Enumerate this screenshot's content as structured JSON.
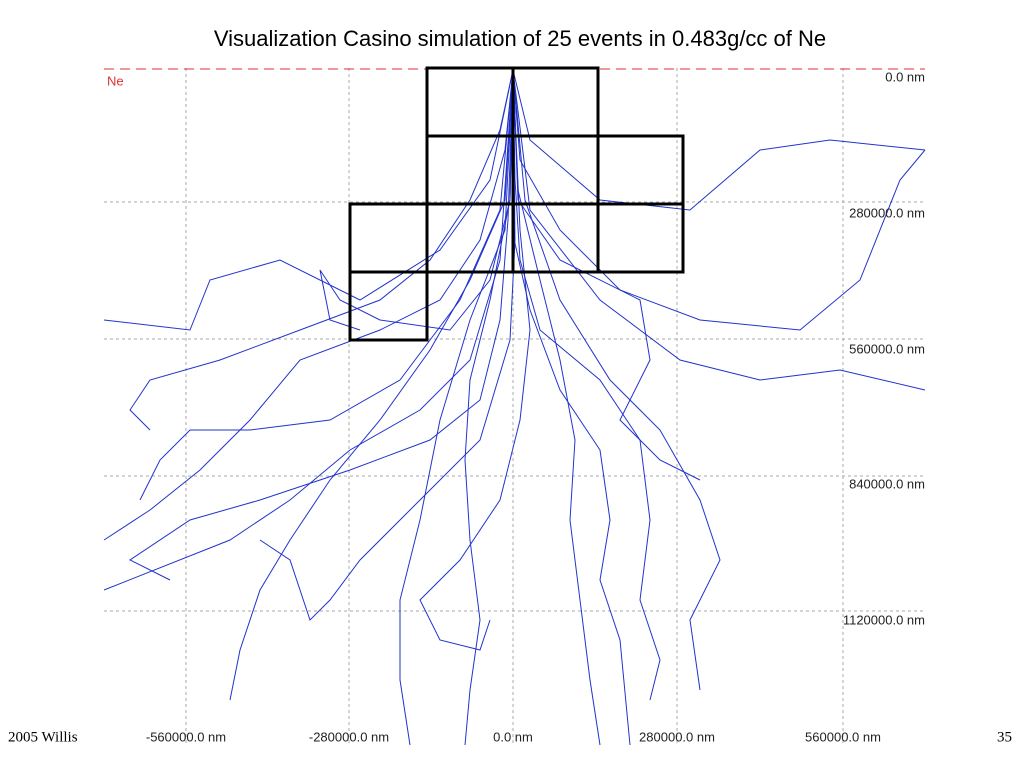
{
  "title": "Visualization Casino simulation of 25 events in 0.483g/cc of Ne",
  "plot": {
    "material_label": "Ne",
    "x_tick_labels": [
      "-560000.0 nm",
      "-280000.0 nm",
      "0.0 nm",
      "280000.0 nm",
      "560000.0 nm"
    ],
    "y_tick_labels": [
      "0.0 nm",
      "280000.0 nm",
      "560000.0 nm",
      "840000.0 nm",
      "1120000.0 nm"
    ]
  },
  "footer": "2005 Willis",
  "page_number": "35"
}
